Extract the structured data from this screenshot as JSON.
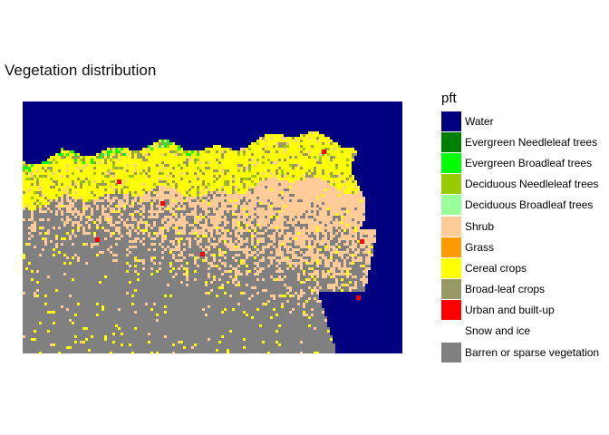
{
  "chart_data": {
    "type": "heatmap",
    "title": "Vegetation distribution",
    "xlabel": "",
    "ylabel": "",
    "grid": false,
    "legend_position": "right",
    "legend": {
      "title": "pft",
      "entries": [
        {
          "name": "Water",
          "color": "#000080"
        },
        {
          "name": "Evergreen Needleleaf trees",
          "color": "#008000"
        },
        {
          "name": "Evergreen Broadleaf trees",
          "color": "#00FF00"
        },
        {
          "name": "Deciduous Needleleaf trees",
          "color": "#99CC00"
        },
        {
          "name": "Deciduous Broadleaf trees",
          "color": "#99FF99"
        },
        {
          "name": "Shrub",
          "color": "#FFCC99"
        },
        {
          "name": "Grass",
          "color": "#FF9900"
        },
        {
          "name": "Cereal crops",
          "color": "#FFFF00"
        },
        {
          "name": "Broad-leaf crops",
          "color": "#999966"
        },
        {
          "name": "Urban and built-up",
          "color": "#FF0000"
        },
        {
          "name": "Snow and ice",
          "color": "#FFFFFF"
        },
        {
          "name": "Barren or sparse vegetation",
          "color": "#808080"
        }
      ]
    }
  }
}
